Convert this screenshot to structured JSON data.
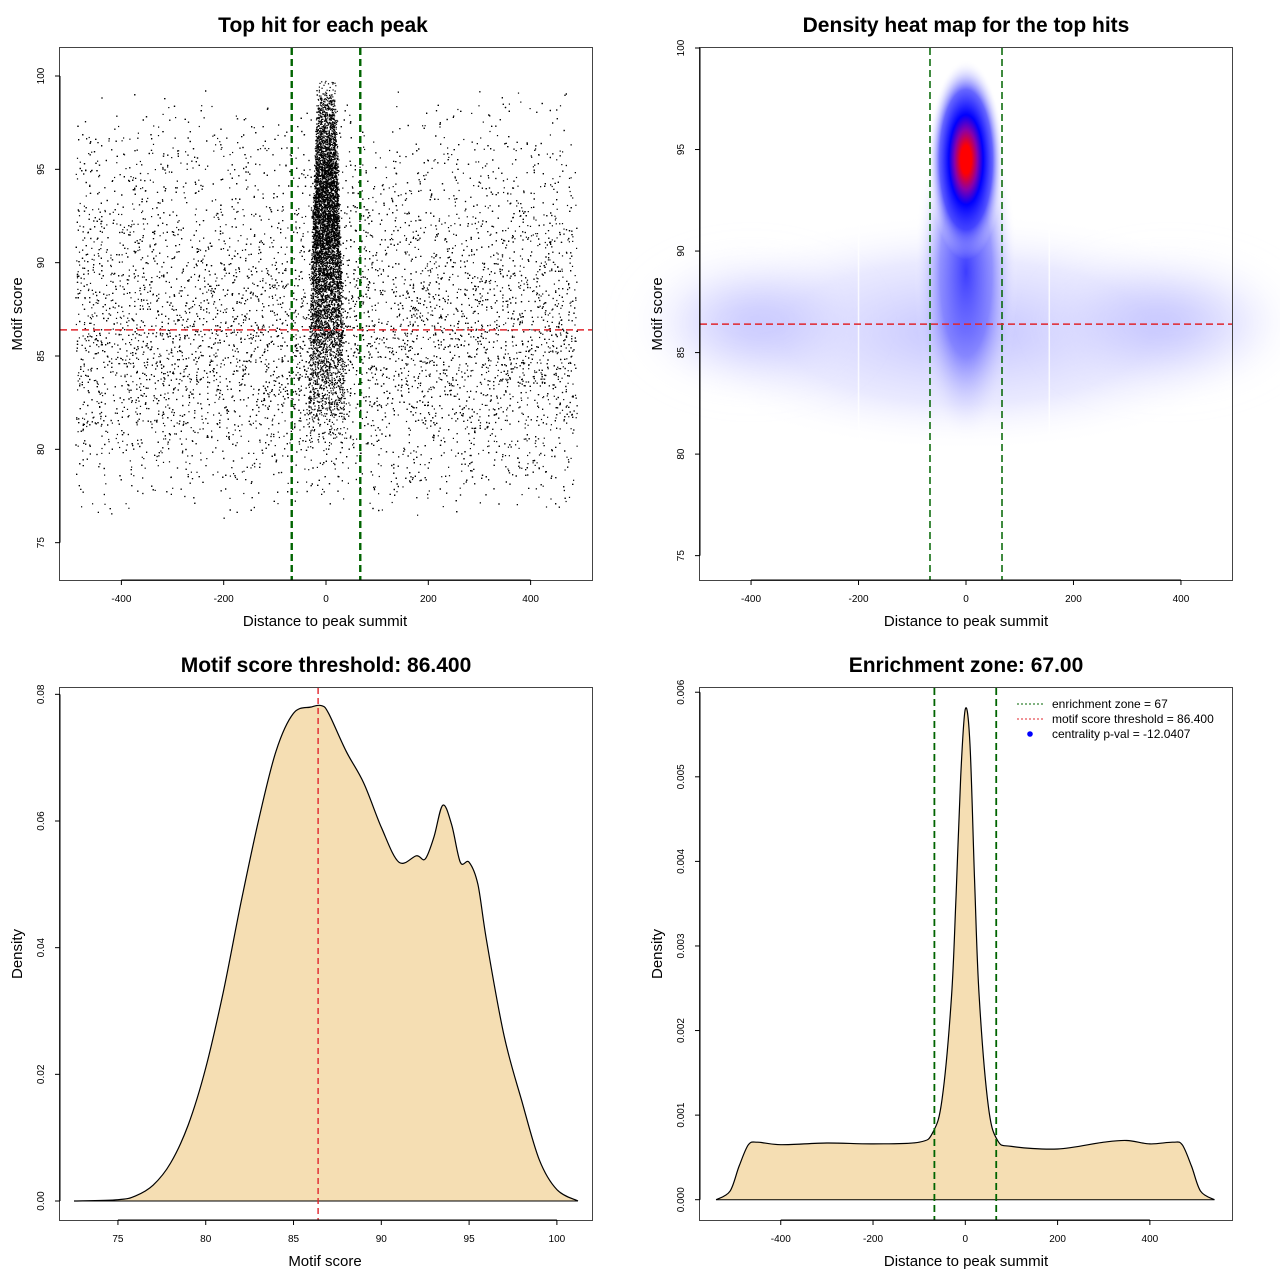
{
  "colors": {
    "threshold_line": "#e0242c",
    "zone_line": "#006400",
    "density_fill": "#f5deb3",
    "scatter_point": "#000000",
    "heat_low": "#ffffff",
    "heat_mid": "#0000ff",
    "heat_high": "#ff0000"
  },
  "chart_data": [
    {
      "type": "scatter",
      "title": "Top hit for each peak",
      "xlabel": "Distance to peak summit",
      "ylabel": "Motif score",
      "xlim": [
        -520,
        520
      ],
      "ylim": [
        73,
        101.5
      ],
      "xticks": [
        -400,
        -200,
        0,
        200,
        400
      ],
      "yticks": [
        75,
        80,
        85,
        90,
        95,
        100
      ],
      "xtick_labels": [
        "-400",
        "-200",
        "0",
        "200",
        "400"
      ],
      "ytick_labels": [
        "75",
        "80",
        "85",
        "90",
        "95",
        "100"
      ],
      "horizontal_lines": [
        86.4
      ],
      "vertical_lines": [
        -67,
        67
      ],
      "background_points": {
        "x_range": [
          -490,
          490
        ],
        "y_mode": 85.5,
        "y_range": [
          73.8,
          99.9
        ],
        "n": 11000
      },
      "central_points": {
        "x_range": [
          -67,
          67
        ],
        "y_mode": 93.5,
        "y_range": [
          80,
          99.9
        ],
        "n": 6000
      }
    },
    {
      "type": "heatmap",
      "title": "Density heat map for the top hits",
      "xlabel": "Distance to peak summit",
      "ylabel": "Motif score",
      "xlim": [
        -495,
        495
      ],
      "ylim": [
        73.8,
        100
      ],
      "xticks": [
        -400,
        -200,
        0,
        200,
        400
      ],
      "yticks": [
        75,
        80,
        85,
        90,
        95,
        100
      ],
      "xtick_labels": [
        "-400",
        "-200",
        "0",
        "200",
        "400"
      ],
      "ytick_labels": [
        "75",
        "80",
        "85",
        "90",
        "95",
        "100"
      ],
      "horizontal_lines": [
        86.4
      ],
      "vertical_lines": [
        -67,
        67
      ],
      "hotspot": {
        "x": 0,
        "y": 94.5
      }
    },
    {
      "type": "area",
      "title": "Motif score threshold: 86.400",
      "xlabel": "Motif score",
      "ylabel": "Density",
      "xlim": [
        71.7,
        102
      ],
      "ylim": [
        -0.003,
        0.081
      ],
      "xticks": [
        75,
        80,
        85,
        90,
        95,
        100
      ],
      "yticks": [
        0.0,
        0.02,
        0.04,
        0.06,
        0.08
      ],
      "xtick_labels": [
        "75",
        "80",
        "85",
        "90",
        "95",
        "100"
      ],
      "ytick_labels": [
        "0.00",
        "0.02",
        "0.04",
        "0.06",
        "0.08"
      ],
      "vertical_lines": [
        86.4
      ],
      "x": [
        72.5,
        75,
        76,
        77,
        78,
        79,
        80,
        81,
        82,
        83,
        84,
        85,
        86,
        86.6,
        87,
        88,
        89,
        90,
        91,
        92,
        92.5,
        93,
        93.5,
        94,
        94.5,
        95,
        95.5,
        96,
        97,
        98,
        99,
        100,
        101.2
      ],
      "y": [
        0.0,
        0.0002,
        0.0008,
        0.0025,
        0.006,
        0.012,
        0.021,
        0.033,
        0.047,
        0.06,
        0.071,
        0.077,
        0.078,
        0.0782,
        0.077,
        0.071,
        0.066,
        0.059,
        0.0535,
        0.0545,
        0.054,
        0.0575,
        0.0625,
        0.0595,
        0.0535,
        0.0535,
        0.05,
        0.041,
        0.026,
        0.0158,
        0.0065,
        0.0018,
        0.0
      ]
    },
    {
      "type": "area",
      "title": "Enrichment zone: 67.00",
      "xlabel": "Distance to peak summit",
      "ylabel": "Density",
      "xlim": [
        -575,
        578
      ],
      "ylim": [
        -0.00024,
        0.00605
      ],
      "xticks": [
        -400,
        -200,
        0,
        200,
        400
      ],
      "yticks": [
        0.0,
        0.001,
        0.002,
        0.003,
        0.004,
        0.005,
        0.006
      ],
      "xtick_labels": [
        "-400",
        "-200",
        "0",
        "200",
        "400"
      ],
      "ytick_labels": [
        "0.000",
        "0.001",
        "0.002",
        "0.003",
        "0.004",
        "0.005",
        "0.006"
      ],
      "vertical_lines": [
        -67,
        67
      ],
      "x": [
        -540,
        -510,
        -490,
        -470,
        -450,
        -400,
        -300,
        -200,
        -100,
        -70,
        -50,
        -30,
        -20,
        -10,
        0,
        10,
        20,
        30,
        50,
        70,
        100,
        200,
        300,
        350,
        400,
        450,
        470,
        490,
        510,
        540
      ],
      "y": [
        0.0,
        0.0001,
        0.0004,
        0.00065,
        0.00068,
        0.00065,
        0.00067,
        0.00066,
        0.00068,
        0.0008,
        0.0012,
        0.0024,
        0.0036,
        0.005,
        0.0058,
        0.0054,
        0.0038,
        0.0024,
        0.0011,
        0.0007,
        0.00063,
        0.0006,
        0.00068,
        0.0007,
        0.00066,
        0.00068,
        0.00065,
        0.0004,
        0.0001,
        0.0
      ],
      "legend": [
        {
          "label": "enrichment zone = 67",
          "style": "dotted",
          "color": "#006400"
        },
        {
          "label": "motif score threshold = 86.400",
          "style": "dotted",
          "color": "#e0242c"
        },
        {
          "label": "centrality p-val = -12.0407",
          "style": "point",
          "color": "#0000ff"
        }
      ],
      "legend_position": "top-right"
    }
  ]
}
